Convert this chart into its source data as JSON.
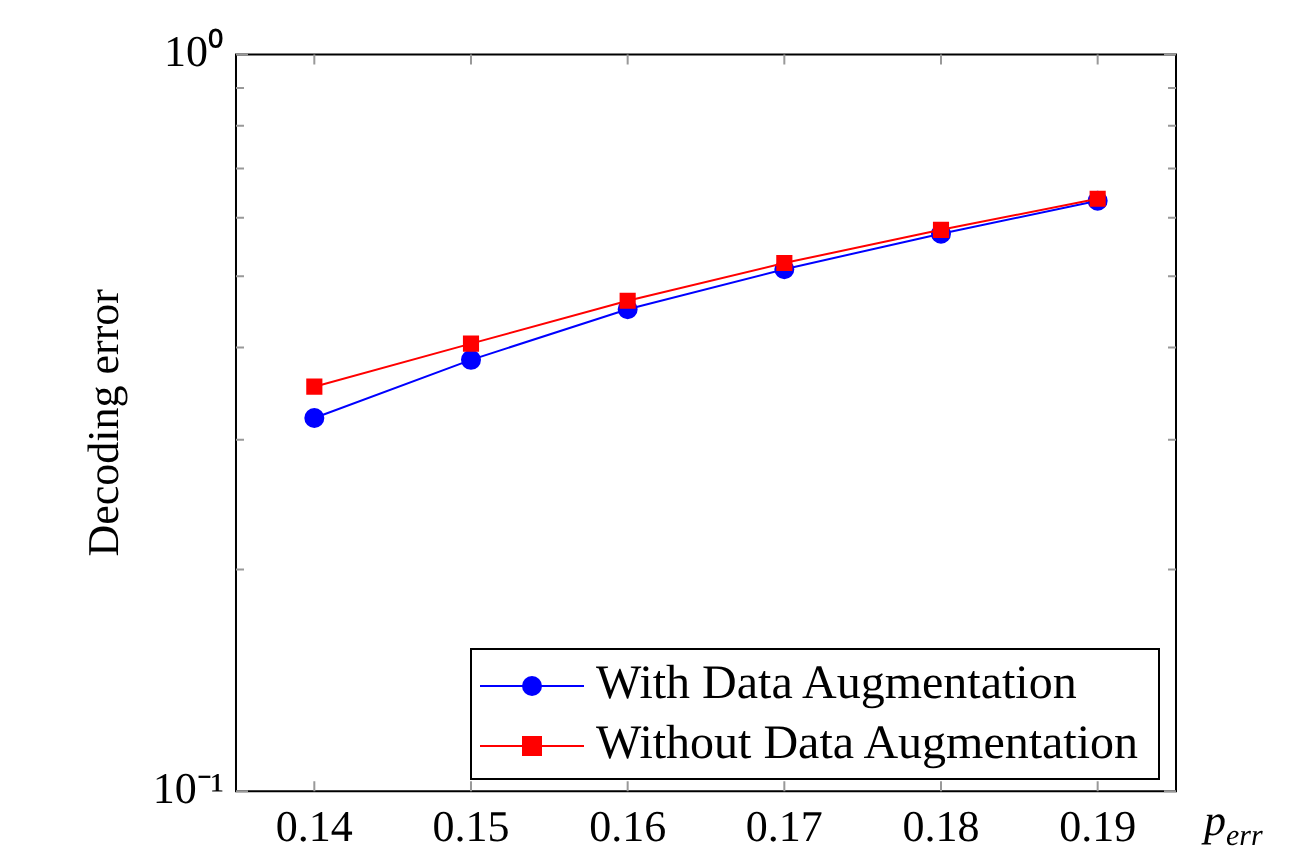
{
  "chart_data": {
    "type": "line",
    "xlabel": "p$_{err}$",
    "ylabel": "Decoding error",
    "x": [
      0.14,
      0.15,
      0.16,
      0.17,
      0.18,
      0.19
    ],
    "series": [
      {
        "name": "With Data Augmentation",
        "color": "#0000ff",
        "marker": "circle",
        "values": [
          0.321,
          0.385,
          0.451,
          0.511,
          0.571,
          0.633
        ]
      },
      {
        "name": "Without Data Augmentation",
        "color": "#ff0000",
        "marker": "square",
        "values": [
          0.354,
          0.405,
          0.463,
          0.521,
          0.578,
          0.637
        ]
      }
    ],
    "log": "y",
    "xlim": [
      0.135,
      0.195
    ],
    "xticks": [
      0.14,
      0.15,
      0.16,
      0.17,
      0.18,
      0.19
    ],
    "ylim": [
      0.1,
      1
    ],
    "yticks": [
      {
        "value": 0.1,
        "label": "10⁻¹"
      },
      {
        "value": 0.2,
        "label": null
      },
      {
        "value": 0.3,
        "label": null
      },
      {
        "value": 0.4,
        "label": null
      },
      {
        "value": 0.5,
        "label": null
      },
      {
        "value": 0.6,
        "label": null
      },
      {
        "value": 0.7,
        "label": null
      },
      {
        "value": 0.8,
        "label": null
      },
      {
        "value": 0.9,
        "label": null
      },
      {
        "value": 1,
        "label": "10⁰"
      }
    ],
    "grid": false,
    "legend": "bottom right",
    "line_style": "solid"
  }
}
